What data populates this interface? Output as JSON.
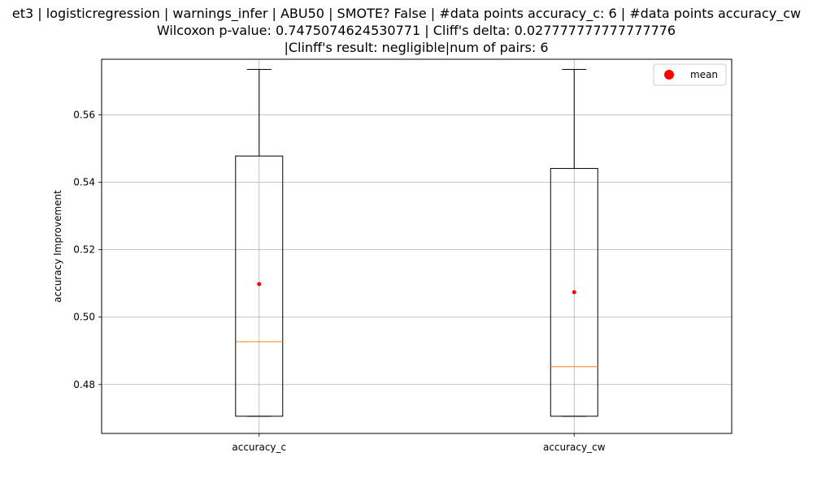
{
  "chart_data": {
    "type": "box",
    "title_lines": [
      "et3 | logisticregression | warnings_infer | ABU50 | SMOTE? False | #data points accuracy_c: 6 | #data points accuracy_cw",
      "Wilcoxon p-value: 0.7475074624530771 | Cliff's delta: 0.027777777777777776",
      "|Clinff's result: negligible|num of pairs: 6"
    ],
    "ylabel": "accuracy Improvement",
    "xlabel": "",
    "ylim": [
      0.4655,
      0.5765
    ],
    "yticks": [
      0.48,
      0.5,
      0.52,
      0.54,
      0.56
    ],
    "ytick_labels": [
      "0.48",
      "0.50",
      "0.52",
      "0.54",
      "0.56"
    ],
    "grid": true,
    "legend": {
      "placement": "top-right",
      "entries": [
        {
          "label": "mean",
          "marker": "circle",
          "color": "#ff0000"
        }
      ]
    },
    "categories": [
      "accuracy_c",
      "accuracy_cw"
    ],
    "boxes": [
      {
        "label": "accuracy_c",
        "whisker_low": 0.4706,
        "q1": 0.4706,
        "median": 0.4927,
        "q3": 0.5478,
        "whisker_high": 0.5735,
        "mean": 0.5098
      },
      {
        "label": "accuracy_cw",
        "whisker_low": 0.4706,
        "q1": 0.4706,
        "median": 0.4853,
        "q3": 0.5441,
        "whisker_high": 0.5735,
        "mean": 0.5074
      }
    ],
    "colors": {
      "box": "#000000",
      "median": "#ff7f0e",
      "mean": "#ff0000",
      "grid": "#b0b0b0"
    }
  }
}
